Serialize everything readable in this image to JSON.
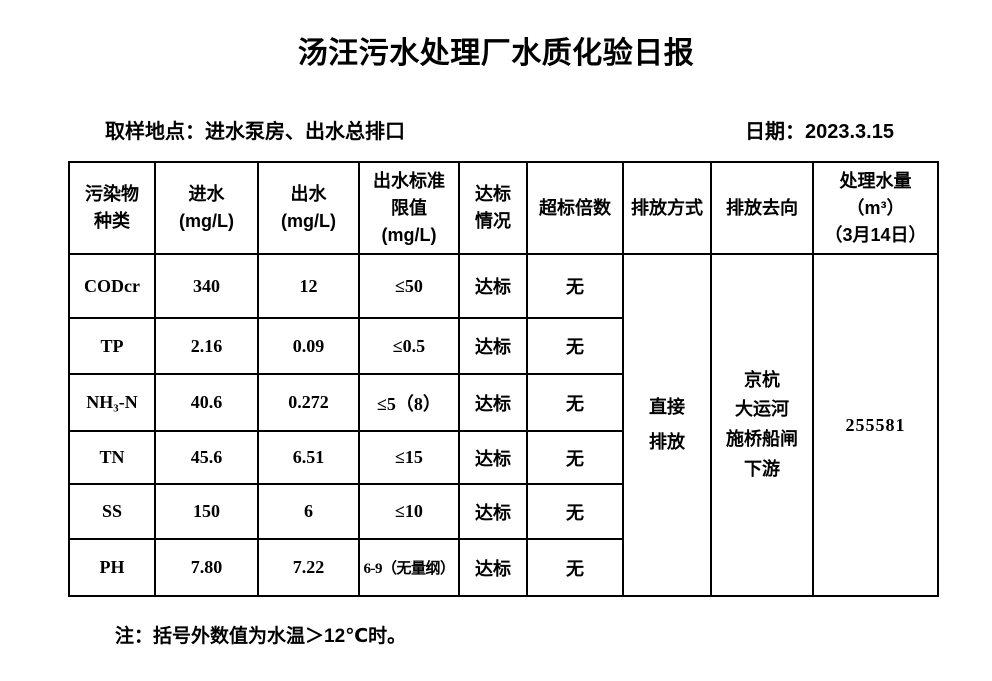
{
  "page": {
    "title": "汤汪污水处理厂水质化验日报",
    "sampling_location": "取样地点：进水泵房、出水总排口",
    "date": "日期：2023.3.15",
    "note": "注：括号外数值为水温＞12℃时。"
  },
  "table": {
    "columns": [
      {
        "id": "pollutant",
        "lines": [
          "污染物",
          "种类"
        ]
      },
      {
        "id": "influent",
        "lines": [
          "进水",
          "(mg/L)"
        ]
      },
      {
        "id": "effluent",
        "lines": [
          "出水",
          "(mg/L)"
        ]
      },
      {
        "id": "limit",
        "lines": [
          "出水标准",
          "限值",
          "(mg/L)"
        ]
      },
      {
        "id": "compliance",
        "lines": [
          "达标",
          "情况"
        ]
      },
      {
        "id": "exceedance",
        "lines": [
          "超标倍数"
        ]
      },
      {
        "id": "discharge_mode",
        "lines": [
          "排放方式"
        ]
      },
      {
        "id": "discharge_destination",
        "lines": [
          "排放去向"
        ]
      },
      {
        "id": "treated_volume",
        "lines": [
          "处理水量",
          "（m³）",
          "（3月14日）"
        ]
      }
    ],
    "rows": [
      {
        "pollutant": "CODcr",
        "influent": "340",
        "effluent": "12",
        "limit": "≤50",
        "compliance": "达标",
        "exceedance": "无"
      },
      {
        "pollutant": "TP",
        "influent": "2.16",
        "effluent": "0.09",
        "limit": "≤0.5",
        "compliance": "达标",
        "exceedance": "无"
      },
      {
        "pollutant": "NH₃-N",
        "influent": "40.6",
        "effluent": "0.272",
        "limit": "≤5（8）",
        "compliance": "达标",
        "exceedance": "无"
      },
      {
        "pollutant": "TN",
        "influent": "45.6",
        "effluent": "6.51",
        "limit": "≤15",
        "compliance": "达标",
        "exceedance": "无"
      },
      {
        "pollutant": "SS",
        "influent": "150",
        "effluent": "6",
        "limit": "≤10",
        "compliance": "达标",
        "exceedance": "无"
      },
      {
        "pollutant": "PH",
        "influent": "7.80",
        "effluent": "7.22",
        "limit": "6-9（无量纲）",
        "compliance": "达标",
        "exceedance": "无"
      }
    ],
    "merged": {
      "discharge_mode_lines": [
        "直接",
        "排放"
      ],
      "discharge_destination_lines": [
        "京杭",
        "大运河",
        "施桥船闸",
        "下游"
      ],
      "treated_volume_value": "255581"
    }
  },
  "colors": {
    "text": "#000000",
    "background": "#ffffff",
    "border": "#000000"
  }
}
